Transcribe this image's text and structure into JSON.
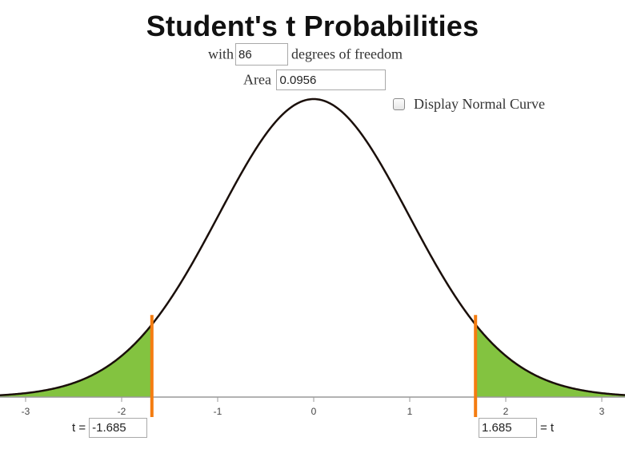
{
  "title": "Student's t Probabilities",
  "df_row": {
    "prefix": "with",
    "value": "86",
    "suffix": "degrees of freedom"
  },
  "area_row": {
    "label": "Area",
    "value": "0.0956"
  },
  "normal_toggle": {
    "label": "Display Normal Curve",
    "checked": false
  },
  "left_t": {
    "label": "t =",
    "value": "-1.685"
  },
  "right_t": {
    "label": "= t",
    "value": "1.685"
  },
  "colors": {
    "curve": "#1a0f0a",
    "shade": "#83c340",
    "marker": "#f47c10",
    "axis": "#999999"
  },
  "chart_data": {
    "type": "area",
    "distribution": "student-t",
    "df": 86,
    "x_range": [
      -3.3,
      3.3
    ],
    "tick_labels": [
      "-3",
      "-2",
      "-1",
      "0",
      "1",
      "2",
      "3"
    ],
    "tick_values": [
      -3,
      -2,
      -1,
      0,
      1,
      2,
      3
    ],
    "shaded_tails": {
      "lower": -1.685,
      "upper": 1.685
    },
    "tail_area": 0.0956
  }
}
